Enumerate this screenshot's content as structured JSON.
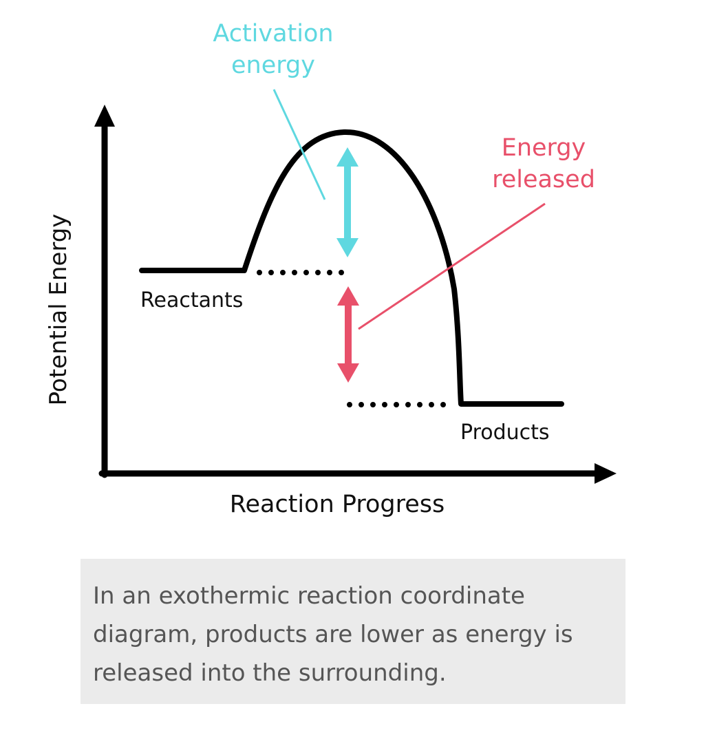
{
  "diagram": {
    "activation_label_line1": "Activation",
    "activation_label_line2": "energy",
    "released_label_line1": "Energy",
    "released_label_line2": "released",
    "reactants_label": "Reactants",
    "products_label": "Products",
    "x_axis_label": "Reaction Progress",
    "y_axis_label": "Potential Energy"
  },
  "caption": {
    "text": "In an exothermic reaction coordinate diagram, products are lower as energy is released into the surrounding."
  },
  "colors": {
    "curve": "#000000",
    "activation": "#5fd8e0",
    "released": "#e8506a",
    "caption_bg": "#ebebeb",
    "caption_text": "#555555"
  }
}
